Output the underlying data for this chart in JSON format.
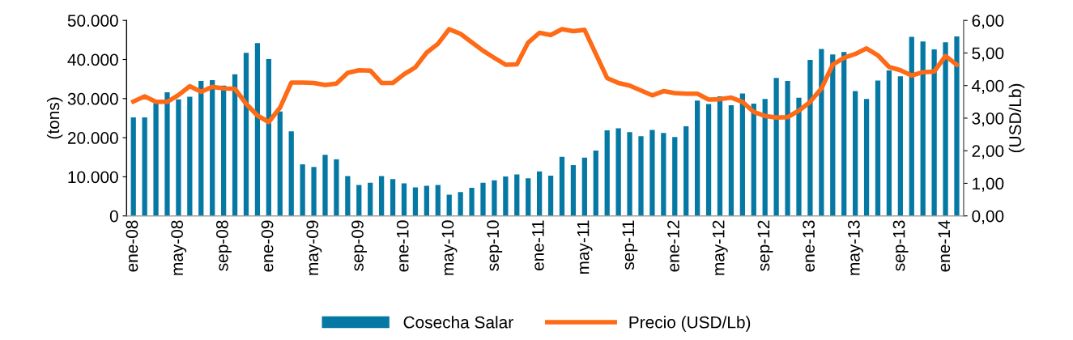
{
  "chart_data": {
    "type": "bar",
    "categories": [
      "ene-08",
      null,
      null,
      null,
      "may-08",
      null,
      null,
      null,
      "sep-08",
      null,
      null,
      null,
      "ene-09",
      null,
      null,
      null,
      "may-09",
      null,
      null,
      null,
      "sep-09",
      null,
      null,
      null,
      "ene-10",
      null,
      null,
      null,
      "may-10",
      null,
      null,
      null,
      "sep-10",
      null,
      null,
      null,
      "ene-11",
      null,
      null,
      null,
      "may-11",
      null,
      null,
      null,
      "sep-11",
      null,
      null,
      null,
      "ene-12",
      null,
      null,
      null,
      "may-12",
      null,
      null,
      null,
      "sep-12",
      null,
      null,
      null,
      "ene-13",
      null,
      null,
      null,
      "may-13",
      null,
      null,
      null,
      "sep-13",
      null,
      null,
      null,
      "ene-14",
      null
    ],
    "ylabel": "(tons)",
    "y2label": "(USD/Lb)",
    "ylim": [
      0,
      50000
    ],
    "yticks": [
      {
        "value": 0,
        "label": "0"
      },
      {
        "value": 10000,
        "label": "10.000"
      },
      {
        "value": 20000,
        "label": "20.000"
      },
      {
        "value": 30000,
        "label": "30.000"
      },
      {
        "value": 40000,
        "label": "40.000"
      },
      {
        "value": 50000,
        "label": "50.000"
      }
    ],
    "y2lim": [
      0,
      6
    ],
    "y2ticks": [
      {
        "value": 0,
        "label": "0,00"
      },
      {
        "value": 1,
        "label": "1,00"
      },
      {
        "value": 2,
        "label": "2,00"
      },
      {
        "value": 3,
        "label": "3,00"
      },
      {
        "value": 4,
        "label": "4,00"
      },
      {
        "value": 5,
        "label": "5,00"
      },
      {
        "value": 6,
        "label": "6,00"
      }
    ],
    "grid": false,
    "legend": "bottom",
    "series": [
      {
        "name": "Cosecha Salar",
        "color": "#0578a4",
        "values": [
          25200,
          25200,
          28800,
          31600,
          29800,
          30500,
          34500,
          34700,
          33300,
          36200,
          41700,
          44200,
          40100,
          26700,
          21600,
          13200,
          12500,
          15600,
          14500,
          10200,
          7900,
          8500,
          10200,
          9400,
          8300,
          7300,
          7700,
          7900,
          5400,
          6100,
          7200,
          8500,
          9100,
          10100,
          10600,
          9600,
          11400,
          10300,
          15100,
          13000,
          14900,
          16700,
          21900,
          22400,
          21400,
          20400,
          22000,
          21200,
          20200,
          22900,
          29500,
          28600,
          30600,
          28300,
          31300,
          28700,
          29900,
          35300,
          34500,
          30200,
          39900,
          42700,
          41300,
          41900,
          31900,
          29900,
          34600,
          37200,
          35700,
          45800,
          44600,
          42600,
          44400,
          45900
        ]
      },
      {
        "name": "Precio (USD/Lb)",
        "type": "line",
        "axis": "y2",
        "color": "#fe6a16",
        "values": [
          3.51,
          3.67,
          3.5,
          3.5,
          3.71,
          3.98,
          3.81,
          3.96,
          3.91,
          3.9,
          3.44,
          3.08,
          2.88,
          3.32,
          4.09,
          4.09,
          4.08,
          4.02,
          4.06,
          4.39,
          4.47,
          4.46,
          4.08,
          4.08,
          4.35,
          4.56,
          5.01,
          5.28,
          5.73,
          5.59,
          5.33,
          5.07,
          4.85,
          4.64,
          4.65,
          5.32,
          5.62,
          5.55,
          5.73,
          5.67,
          5.71,
          4.97,
          4.23,
          4.08,
          4.0,
          3.85,
          3.7,
          3.83,
          3.77,
          3.75,
          3.75,
          3.57,
          3.58,
          3.63,
          3.5,
          3.19,
          3.07,
          3.02,
          3.03,
          3.23,
          3.5,
          3.91,
          4.64,
          4.85,
          4.97,
          5.14,
          4.93,
          4.57,
          4.47,
          4.31,
          4.41,
          4.43,
          4.91,
          4.64
        ]
      }
    ]
  }
}
